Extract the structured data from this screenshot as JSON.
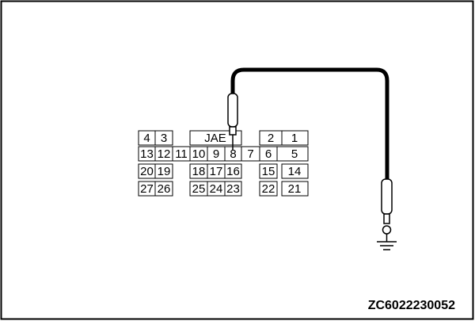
{
  "connector": {
    "name": "JAE",
    "pins": [
      "1",
      "2",
      "3",
      "4",
      "5",
      "6",
      "7",
      "8",
      "9",
      "10",
      "11",
      "12",
      "13",
      "14",
      "15",
      "16",
      "17",
      "18",
      "19",
      "20",
      "21",
      "22",
      "23",
      "24",
      "25",
      "26",
      "27"
    ]
  },
  "figure_code": "ZC6022230052"
}
